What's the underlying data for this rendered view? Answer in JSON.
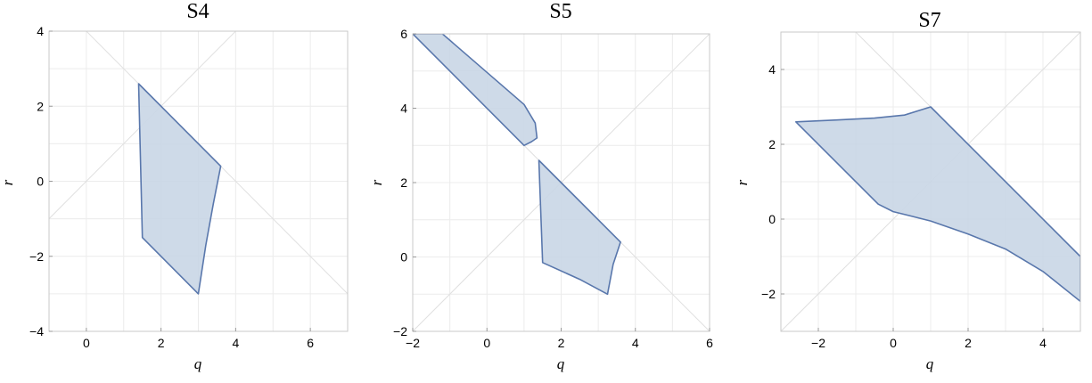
{
  "style": {
    "fill_color": "#c9d6e6",
    "stroke_color": "#5977ac",
    "fill_opacity": 0.9
  },
  "chart_data": [
    {
      "type": "area",
      "title": "S4",
      "xlabel": "q",
      "ylabel": "r",
      "xlim": [
        -1,
        7
      ],
      "ylim": [
        -4,
        4
      ],
      "xticks": [
        0,
        2,
        4,
        6
      ],
      "yticks": [
        -4,
        -2,
        0,
        2,
        4
      ],
      "grid": true,
      "guide_lines": [
        {
          "slope": 1,
          "intercept": 0
        },
        {
          "slope": -1,
          "intercept": 4
        }
      ],
      "regions": [
        [
          [
            1.4,
            2.6
          ],
          [
            3.6,
            0.4
          ],
          [
            3.4,
            -0.6
          ],
          [
            3.2,
            -1.7
          ],
          [
            3.0,
            -3.0
          ],
          [
            1.5,
            -1.5
          ],
          [
            1.4,
            2.6
          ]
        ]
      ]
    },
    {
      "type": "area",
      "title": "S5",
      "xlabel": "q",
      "ylabel": "r",
      "xlim": [
        -2,
        6
      ],
      "ylim": [
        -2,
        6
      ],
      "xticks": [
        -2,
        0,
        2,
        4,
        6
      ],
      "yticks": [
        -2,
        0,
        2,
        4,
        6
      ],
      "grid": true,
      "guide_lines": [
        {
          "slope": 1,
          "intercept": 0
        },
        {
          "slope": -1,
          "intercept": 4
        }
      ],
      "regions": [
        [
          [
            -2.0,
            6.0
          ],
          [
            -1.2,
            6.0
          ],
          [
            1.0,
            4.1
          ],
          [
            1.3,
            3.6
          ],
          [
            1.35,
            3.2
          ],
          [
            1.2,
            3.1
          ],
          [
            1.0,
            3.0
          ],
          [
            -2.0,
            6.0
          ]
        ],
        [
          [
            1.4,
            2.6
          ],
          [
            3.6,
            0.4
          ],
          [
            3.4,
            -0.2
          ],
          [
            3.25,
            -1.0
          ],
          [
            2.5,
            -0.6
          ],
          [
            1.5,
            -0.15
          ],
          [
            1.4,
            2.6
          ]
        ]
      ]
    },
    {
      "type": "area",
      "title": "S7",
      "xlabel": "q",
      "ylabel": "r",
      "xlim": [
        -3,
        5
      ],
      "ylim": [
        -3,
        5
      ],
      "xticks": [
        -2,
        0,
        2,
        4
      ],
      "yticks": [
        -2,
        0,
        2,
        4
      ],
      "grid": true,
      "guide_lines": [
        {
          "slope": 1,
          "intercept": 0
        },
        {
          "slope": -1,
          "intercept": 4
        }
      ],
      "regions": [
        [
          [
            -2.6,
            2.6
          ],
          [
            -1.5,
            2.65
          ],
          [
            -0.5,
            2.7
          ],
          [
            0.3,
            2.78
          ],
          [
            1.0,
            3.0
          ],
          [
            5.0,
            -1.0
          ],
          [
            5.0,
            -2.2
          ],
          [
            4.0,
            -1.4
          ],
          [
            3.0,
            -0.8
          ],
          [
            2.0,
            -0.4
          ],
          [
            1.0,
            -0.05
          ],
          [
            0.0,
            0.2
          ],
          [
            -0.4,
            0.4
          ],
          [
            -2.6,
            2.6
          ]
        ]
      ]
    }
  ]
}
